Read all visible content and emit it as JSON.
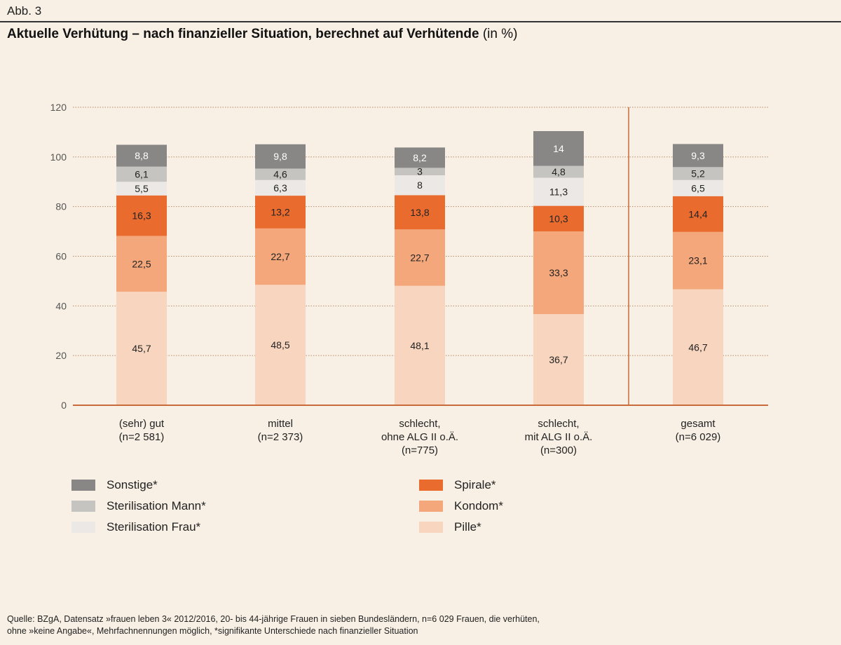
{
  "figure_label": "Abb. 3",
  "title": "Aktuelle Verhütung – nach finanzieller Situation, berechnet auf Verhütende",
  "title_unit": "(in %)",
  "source_line1": "Quelle: BZgA, Datensatz »frauen leben 3« 2012/2016, 20- bis 44-jährige Frauen in sieben Bundesländern, n=6 029 Frauen, die verhüten,",
  "source_line2": "ohne »keine Angabe«, Mehrfachnennungen möglich, *signifikante Unterschiede nach finanzieller Situation",
  "chart_data": {
    "type": "bar",
    "stacked": true,
    "ylim": [
      0,
      120
    ],
    "yticks": [
      0,
      20,
      40,
      60,
      80,
      100,
      120
    ],
    "categories": [
      [
        "(sehr) gut",
        "(n=2 581)"
      ],
      [
        "mittel",
        "(n=2 373)"
      ],
      [
        "schlecht,",
        "ohne ALG II o.Ä.",
        "(n=775)"
      ],
      [
        "schlecht,",
        "mit ALG II o.Ä.",
        "(n=300)"
      ],
      [
        "gesamt",
        "(n=6 029)"
      ]
    ],
    "series": [
      {
        "name": "Pille*",
        "color": "#f8d5be",
        "text_color": "#222222",
        "values": [
          45.7,
          48.5,
          48.1,
          36.7,
          46.7
        ],
        "labels": [
          "45,7",
          "48,5",
          "48,1",
          "36,7",
          "46,7"
        ]
      },
      {
        "name": "Kondom*",
        "color": "#f3a77a",
        "text_color": "#222222",
        "values": [
          22.5,
          22.7,
          22.7,
          33.3,
          23.1
        ],
        "labels": [
          "22,5",
          "22,7",
          "22,7",
          "33,3",
          "23,1"
        ]
      },
      {
        "name": "Spirale*",
        "color": "#ea6b2e",
        "text_color": "#222222",
        "values": [
          16.3,
          13.2,
          13.8,
          10.3,
          14.4
        ],
        "labels": [
          "16,3",
          "13,2",
          "13,8",
          "10,3",
          "14,4"
        ]
      },
      {
        "name": "Sterilisation Frau*",
        "color": "#ebe8e5",
        "text_color": "#222222",
        "values": [
          5.5,
          6.3,
          8,
          11.3,
          6.5
        ],
        "labels": [
          "5,5",
          "6,3",
          "8",
          "11,3",
          "6,5"
        ]
      },
      {
        "name": "Sterilisation Mann*",
        "color": "#c6c4c1",
        "text_color": "#222222",
        "values": [
          6.1,
          4.6,
          3,
          4.8,
          5.2
        ],
        "labels": [
          "6,1",
          "4,6",
          "3",
          "4,8",
          "5,2"
        ]
      },
      {
        "name": "Sonstige*",
        "color": "#888786",
        "text_color": "#ffffff",
        "values": [
          8.8,
          9.8,
          8.2,
          14,
          9.3
        ],
        "labels": [
          "8,8",
          "9,8",
          "8,2",
          "14",
          "9,3"
        ]
      }
    ],
    "legend": {
      "left_column": [
        "Sonstige*",
        "Sterilisation Mann*",
        "Sterilisation Frau*"
      ],
      "right_column": [
        "Spirale*",
        "Kondom*",
        "Pille*"
      ]
    },
    "colors": {
      "axis": "#c96a3a",
      "grid": "#b58a68",
      "tick_text": "#555555",
      "background": "#f8f0e5"
    }
  }
}
